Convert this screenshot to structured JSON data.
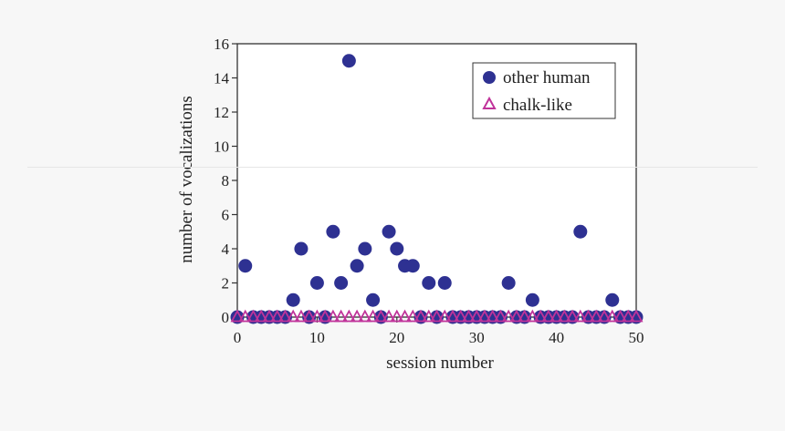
{
  "chart_data": {
    "type": "scatter",
    "xlabel": "session number",
    "ylabel": "number of vocalizations",
    "xlim": [
      0,
      50
    ],
    "ylim": [
      0,
      16
    ],
    "xticks": [
      0,
      10,
      20,
      30,
      40,
      50
    ],
    "yticks": [
      0,
      2,
      4,
      6,
      8,
      10,
      12,
      14,
      16
    ],
    "legend_position": "top-right",
    "series": [
      {
        "name": "other human",
        "marker": "filled-circle",
        "color": "#2e3192",
        "x": [
          0,
          1,
          2,
          3,
          4,
          5,
          6,
          7,
          8,
          9,
          10,
          11,
          12,
          13,
          14,
          15,
          16,
          17,
          18,
          19,
          20,
          21,
          22,
          23,
          24,
          25,
          26,
          27,
          28,
          29,
          30,
          31,
          32,
          33,
          34,
          35,
          36,
          37,
          38,
          39,
          40,
          41,
          42,
          43,
          44,
          45,
          46,
          47,
          48,
          49,
          50
        ],
        "y": [
          0,
          3,
          0,
          0,
          0,
          0,
          0,
          1,
          4,
          0,
          2,
          0,
          5,
          2,
          15,
          3,
          4,
          1,
          0,
          5,
          4,
          3,
          3,
          0,
          2,
          0,
          2,
          0,
          0,
          0,
          0,
          0,
          0,
          0,
          2,
          0,
          0,
          1,
          0,
          0,
          0,
          0,
          0,
          5,
          0,
          0,
          0,
          1,
          0,
          0,
          0
        ]
      },
      {
        "name": "chalk-like",
        "marker": "open-triangle",
        "color": "#c0339a",
        "x": [
          0,
          1,
          2,
          3,
          4,
          5,
          6,
          7,
          8,
          9,
          10,
          11,
          12,
          13,
          14,
          15,
          16,
          17,
          18,
          19,
          20,
          21,
          22,
          23,
          24,
          25,
          26,
          27,
          28,
          29,
          30,
          31,
          32,
          33,
          34,
          35,
          36,
          37,
          38,
          39,
          40,
          41,
          42,
          43,
          44,
          45,
          46,
          47,
          48,
          49,
          50
        ],
        "y": [
          0,
          0,
          0,
          0,
          0,
          0,
          0,
          0,
          0,
          0,
          0,
          0,
          0,
          0,
          0,
          0,
          0,
          0,
          0,
          0,
          0,
          0,
          0,
          0,
          0,
          0,
          0,
          0,
          0,
          0,
          0,
          0,
          0,
          0,
          0,
          0,
          0,
          0,
          0,
          0,
          0,
          0,
          0,
          0,
          0,
          0,
          0,
          0,
          0,
          0,
          0
        ]
      }
    ]
  }
}
